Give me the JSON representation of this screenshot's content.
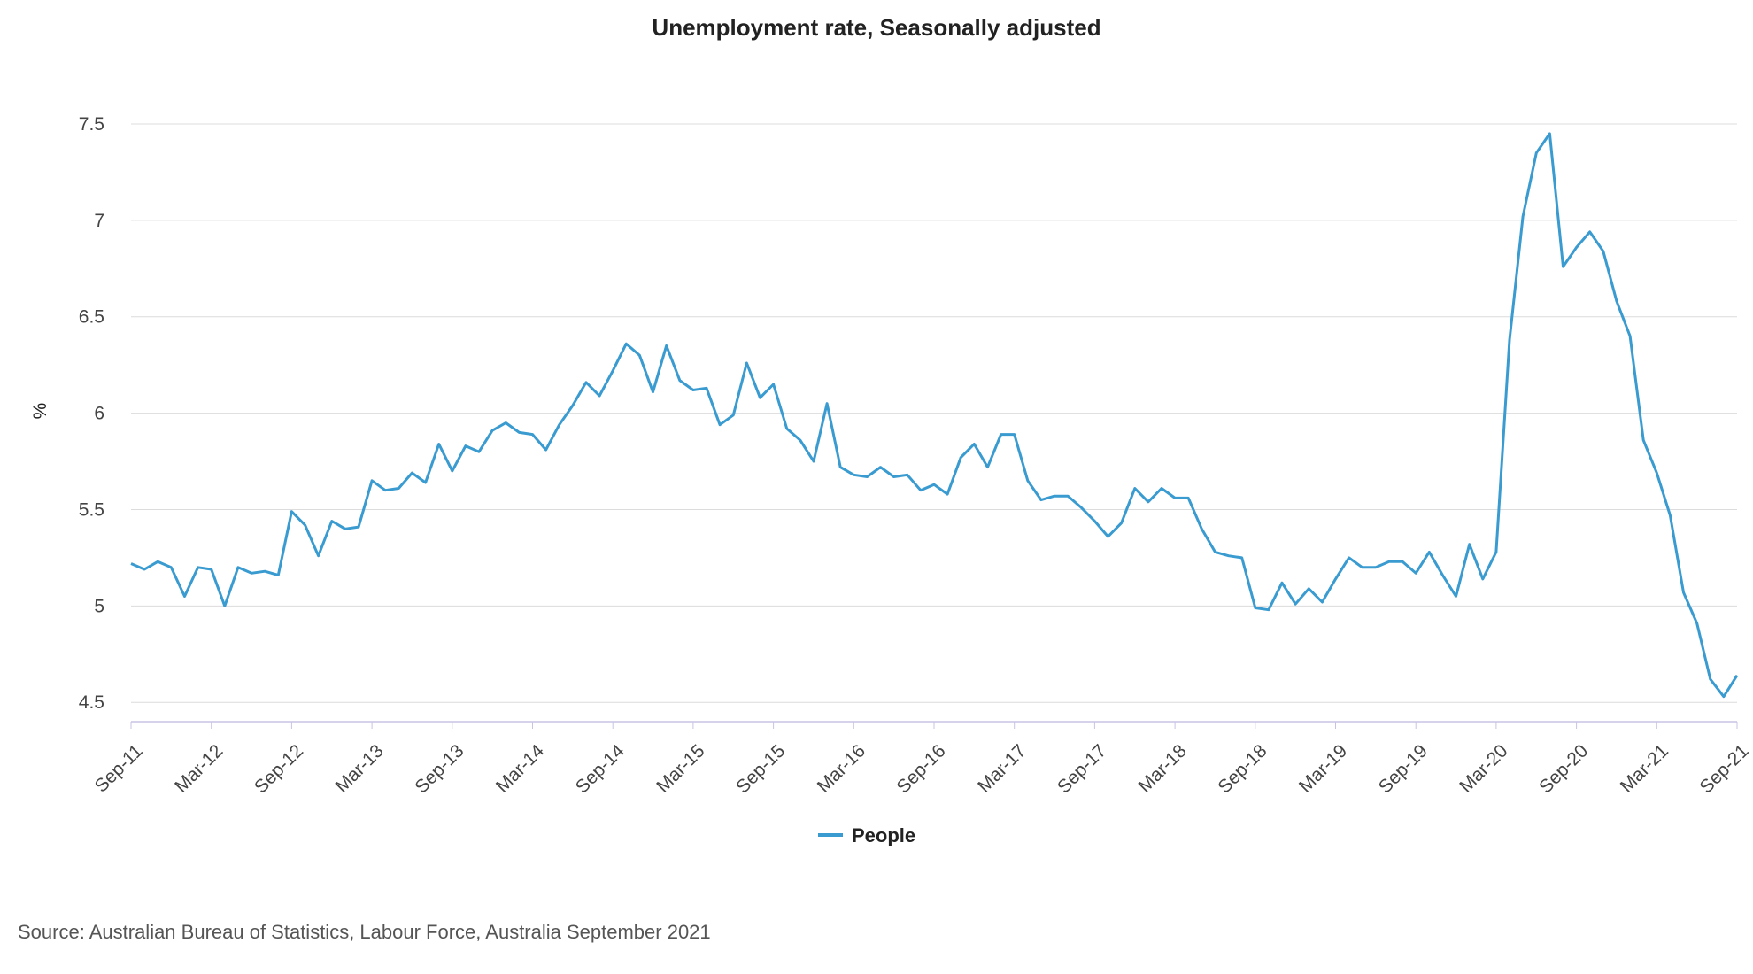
{
  "chart_data": {
    "type": "line",
    "title": "Unemployment rate, Seasonally adjusted",
    "xlabel": "",
    "ylabel": "%",
    "x_tick_labels": [
      "Sep-11",
      "Mar-12",
      "Sep-12",
      "Mar-13",
      "Sep-13",
      "Mar-14",
      "Sep-14",
      "Mar-15",
      "Sep-15",
      "Mar-16",
      "Sep-16",
      "Mar-17",
      "Sep-17",
      "Mar-18",
      "Sep-18",
      "Mar-19",
      "Sep-19",
      "Mar-20",
      "Sep-20",
      "Mar-21",
      "Sep-21"
    ],
    "y_ticks": [
      "4.5",
      "5",
      "5.5",
      "6",
      "6.5",
      "7",
      "7.5"
    ],
    "ylim": [
      4.4,
      7.5
    ],
    "grid": true,
    "legend_position": "bottom",
    "series": [
      {
        "name": "People",
        "color": "#3a9bd0",
        "values": [
          5.22,
          5.19,
          5.23,
          5.2,
          5.05,
          5.2,
          5.19,
          5.0,
          5.2,
          5.17,
          5.18,
          5.16,
          5.49,
          5.42,
          5.26,
          5.44,
          5.4,
          5.41,
          5.65,
          5.6,
          5.61,
          5.69,
          5.64,
          5.84,
          5.7,
          5.83,
          5.8,
          5.91,
          5.95,
          5.9,
          5.89,
          5.81,
          5.94,
          6.04,
          6.16,
          6.09,
          6.22,
          6.36,
          6.3,
          6.11,
          6.35,
          6.17,
          6.12,
          6.13,
          5.94,
          5.99,
          6.26,
          6.08,
          6.15,
          5.92,
          5.86,
          5.75,
          6.05,
          5.72,
          5.68,
          5.67,
          5.72,
          5.67,
          5.68,
          5.6,
          5.63,
          5.58,
          5.77,
          5.84,
          5.72,
          5.89,
          5.89,
          5.65,
          5.55,
          5.57,
          5.57,
          5.51,
          5.44,
          5.36,
          5.43,
          5.61,
          5.54,
          5.61,
          5.56,
          5.56,
          5.4,
          5.28,
          5.26,
          5.25,
          4.99,
          4.98,
          5.12,
          5.01,
          5.09,
          5.02,
          5.14,
          5.25,
          5.2,
          5.2,
          5.23,
          5.23,
          5.17,
          5.28,
          5.16,
          5.05,
          5.32,
          5.14,
          5.28,
          6.38,
          7.02,
          7.35,
          7.45,
          6.76,
          6.86,
          6.94,
          6.84,
          6.58,
          6.4,
          5.86,
          5.69,
          5.47,
          5.07,
          4.91,
          4.62,
          4.53,
          4.64
        ]
      }
    ],
    "legend": [
      {
        "label": "People"
      }
    ]
  },
  "source": "Source: Australian Bureau of Statistics, Labour Force, Australia September 2021"
}
